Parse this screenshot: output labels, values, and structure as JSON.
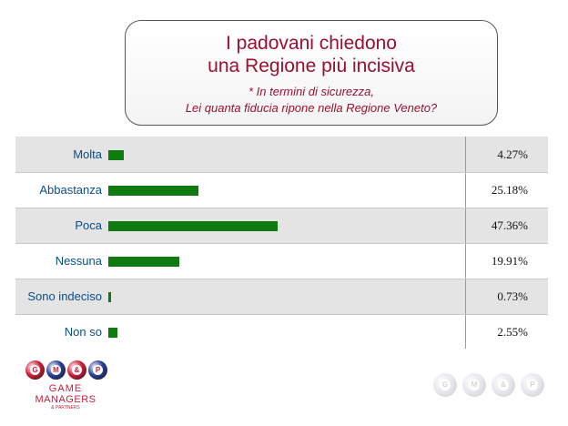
{
  "header": {
    "title_line1": "I padovani chiedono",
    "title_line2": "una Regione più incisiva",
    "question_line1": "* In termini di sicurezza,",
    "question_line2": "Lei quanta fiducia ripone nella Regione Veneto?"
  },
  "chart_data": {
    "type": "bar",
    "orientation": "horizontal",
    "title": "I padovani chiedono una Regione più incisiva",
    "subtitle": "* In termini di sicurezza, Lei quanta fiducia ripone nella Regione Veneto?",
    "categories": [
      "Molta",
      "Abbastanza",
      "Poca",
      "Nessuna",
      "Sono indeciso",
      "Non so"
    ],
    "values": [
      4.27,
      25.18,
      47.36,
      19.91,
      0.73,
      2.55
    ],
    "value_labels": [
      "4.27%",
      "25.18%",
      "47.36%",
      "19.91%",
      "0.73%",
      "2.55%"
    ],
    "unit": "%",
    "bar_color": "#0f7a0f",
    "grid": false
  },
  "logo": {
    "letters": [
      "G",
      "M",
      "&",
      "P"
    ],
    "line1": "GAME",
    "line2": "MANAGERS",
    "line3": "& PARTNERS",
    "ball_colors": [
      "#d0203a",
      "#2a3f9a",
      "#d0203a",
      "#2a3f9a"
    ]
  }
}
